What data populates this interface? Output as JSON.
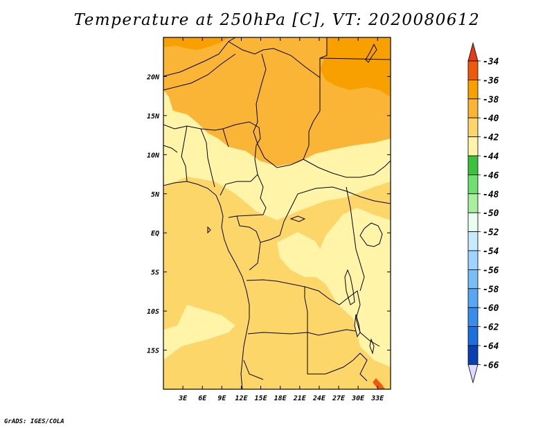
{
  "title": "Temperature at 250hPa [C], VT: 2020080612",
  "credit": "GrADS: IGES/COLA",
  "map": {
    "lon_range": [
      0,
      35
    ],
    "lat_range": [
      -20,
      25
    ],
    "lon_ticks": [
      "3E",
      "6E",
      "9E",
      "12E",
      "15E",
      "18E",
      "21E",
      "24E",
      "27E",
      "30E",
      "33E"
    ],
    "lat_ticks": [
      "20N",
      "15N",
      "10N",
      "5N",
      "EQ",
      "5S",
      "10S",
      "15S"
    ]
  },
  "colorbar": {
    "labels": [
      "-34",
      "-36",
      "-38",
      "-40",
      "-42",
      "-44",
      "-46",
      "-48",
      "-50",
      "-52",
      "-54",
      "-56",
      "-58",
      "-60",
      "-62",
      "-64",
      "-66"
    ],
    "colors": [
      "#ef5a0a",
      "#f7a000",
      "#fab436",
      "#fdd66a",
      "#fff4a8",
      "#3cc13c",
      "#6fe06f",
      "#a8f0a0",
      "#e8fff0",
      "#c8eaff",
      "#9ed4ff",
      "#78bff8",
      "#56a8f2",
      "#3a8ceb",
      "#1c6fdc",
      "#0a3fb4"
    ],
    "top_arrow_color": "#e83a14",
    "bottom_arrow_color": "#dcdcff"
  }
}
